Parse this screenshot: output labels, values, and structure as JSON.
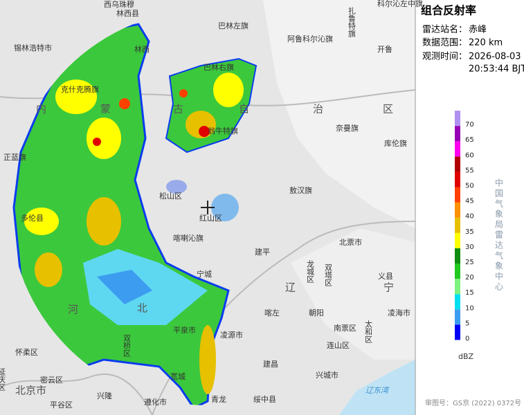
{
  "info": {
    "title": "组合反射率",
    "rows": [
      {
        "label": "雷达站名：",
        "value": "赤峰"
      },
      {
        "label": "数据范围：",
        "value": "220 km"
      },
      {
        "label": "观测时间：",
        "value": "2026-08-03",
        "value_line2": "20:53:44 BJT"
      }
    ]
  },
  "legend": {
    "unit": "dBZ",
    "values": [
      0,
      5,
      10,
      15,
      20,
      25,
      30,
      35,
      40,
      45,
      50,
      55,
      60,
      65,
      70
    ],
    "colors": [
      "#0000f6",
      "#3c9cf0",
      "#00e0f0",
      "#7ef27e",
      "#20c820",
      "#108c10",
      "#ffff00",
      "#e7c000",
      "#ff9000",
      "#ff4000",
      "#e00000",
      "#b00000",
      "#ff00f0",
      "#9600b4",
      "#b090f0"
    ]
  },
  "source": "中国气象局雷达气象中心",
  "footer": "审图号：GS京 (2022) 0372号",
  "map_labels": [
    "西乌珠穆",
    "林西县",
    "科尔沁左中旗",
    "扎鲁特旗",
    "锡林浩特市",
    "巴林左旗",
    "阿鲁科尔沁旗",
    "开鲁",
    "林西",
    "巴林右旗",
    "克什克腾旗",
    "内",
    "蒙",
    "古",
    "自",
    "治",
    "区",
    "奈曼旗",
    "库伦旗",
    "翁牛特旗",
    "正蓝旗",
    "敖汉旗",
    "松山区",
    "红山区",
    "多伦县",
    "喀喇沁旗",
    "建平",
    "北票市",
    "宁城",
    "龙城区",
    "双塔区",
    "义县",
    "辽",
    "宁",
    "喀左",
    "朝阳",
    "凌海市",
    "北",
    "河",
    "平泉市",
    "凌源市",
    "南票区",
    "太和区",
    "双桥区",
    "连山区",
    "怀柔区",
    "建昌",
    "延庆区",
    "兴城市",
    "密云区",
    "宽城",
    "北京市",
    "兴隆",
    "平谷区",
    "遵化市",
    "青龙",
    "绥中县",
    "辽东湾"
  ]
}
